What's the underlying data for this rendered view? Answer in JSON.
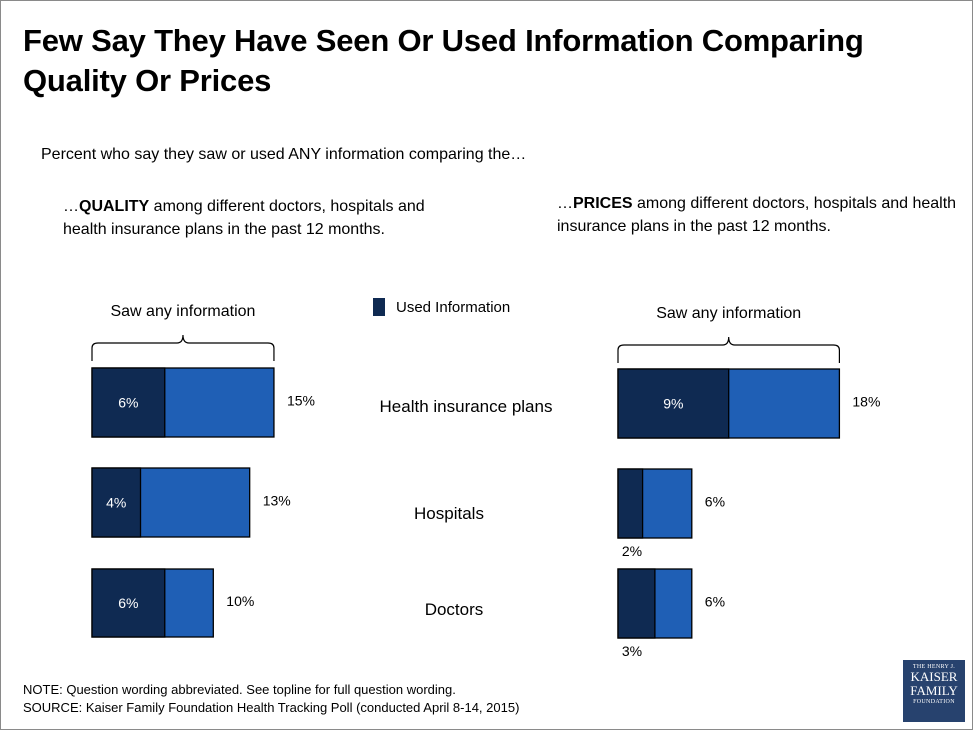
{
  "title": "Few Say They Have Seen Or Used Information Comparing Quality Or Prices",
  "subtitle": "Percent who say they saw or used ANY information comparing the…",
  "panels": {
    "quality": {
      "prefix": "…",
      "bold": "QUALITY",
      "rest": " among different doctors, hospitals and health insurance plans in the past 12 months."
    },
    "prices": {
      "prefix": "…",
      "bold": "PRICES",
      "rest": " among different doctors, hospitals and health insurance plans in the past 12 months."
    }
  },
  "legend": {
    "label": "Used Information",
    "color": "#0f2a52"
  },
  "bracket_label": "Saw any information",
  "colors": {
    "used": "#0f2a52",
    "saw": "#1f5fb5",
    "stroke": "#000000"
  },
  "categories": [
    "Health insurance plans",
    "Hospitals",
    "Doctors"
  ],
  "chart_data": [
    {
      "type": "bar",
      "title": "QUALITY",
      "orientation": "horizontal",
      "stacked": true,
      "categories": [
        "Health insurance plans",
        "Hospitals",
        "Doctors"
      ],
      "series": [
        {
          "name": "Used Information",
          "values": [
            6,
            4,
            6
          ]
        },
        {
          "name": "Saw any information",
          "values": [
            15,
            13,
            10
          ]
        }
      ],
      "value_labels": {
        "used": [
          "6%",
          "4%",
          "6%"
        ],
        "saw": [
          "15%",
          "13%",
          "10%"
        ]
      }
    },
    {
      "type": "bar",
      "title": "PRICES",
      "orientation": "horizontal",
      "stacked": true,
      "categories": [
        "Health insurance plans",
        "Hospitals",
        "Doctors"
      ],
      "series": [
        {
          "name": "Used Information",
          "values": [
            9,
            2,
            3
          ]
        },
        {
          "name": "Saw any information",
          "values": [
            18,
            6,
            6
          ]
        }
      ],
      "value_labels": {
        "used": [
          "9%",
          "2%",
          "3%"
        ],
        "saw": [
          "18%",
          "6%",
          "6%"
        ]
      }
    }
  ],
  "note": "NOTE: Question wording abbreviated.  See topline for full question wording.",
  "source": "SOURCE: Kaiser Family Foundation Health Tracking Poll (conducted April 8-14, 2015)",
  "logo": {
    "line1": "THE HENRY J.",
    "line2": "KAISER",
    "line3": "FAMILY",
    "line4": "FOUNDATION"
  }
}
